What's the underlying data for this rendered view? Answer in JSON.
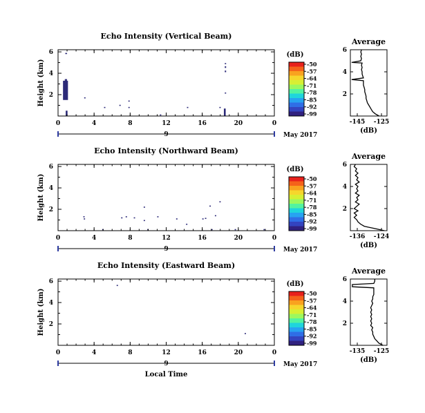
{
  "panels": [
    {
      "title": "Echo Intensity (Vertical Beam)",
      "ylabel": "Height (km)",
      "xticks": [
        "0",
        "4",
        "8",
        "12",
        "16",
        "20",
        "0"
      ],
      "yticks": [
        "2",
        "4",
        "6"
      ],
      "date_day": "9",
      "date_label": "May 2017",
      "echoes": [
        {
          "t0": 0.55,
          "t1": 1.1,
          "h0": 1.5,
          "h1": 3.3
        },
        {
          "t0": 0.75,
          "t1": 1.0,
          "h0": 3.3,
          "h1": 3.45
        },
        {
          "t0": 0.85,
          "t1": 1.05,
          "h0": 0.0,
          "h1": 0.5
        },
        {
          "t0": 0.8,
          "t1": 1.0,
          "h0": 5.8,
          "h1": 5.9
        },
        {
          "t0": 2.9,
          "t1": 3.05,
          "h0": 1.65,
          "h1": 1.75
        },
        {
          "t0": 5.1,
          "t1": 5.25,
          "h0": 0.75,
          "h1": 0.85
        },
        {
          "t0": 6.8,
          "t1": 6.95,
          "h0": 0.95,
          "h1": 1.05
        },
        {
          "t0": 7.8,
          "t1": 7.95,
          "h0": 1.35,
          "h1": 1.45
        },
        {
          "t0": 7.8,
          "t1": 7.95,
          "h0": 0.75,
          "h1": 0.85
        },
        {
          "t0": 11.3,
          "t1": 11.45,
          "h0": 0.05,
          "h1": 0.15
        },
        {
          "t0": 14.3,
          "t1": 14.45,
          "h0": 0.75,
          "h1": 0.85
        },
        {
          "t0": 17.9,
          "t1": 18.05,
          "h0": 0.75,
          "h1": 0.85
        },
        {
          "t0": 18.4,
          "t1": 18.6,
          "h0": 0.0,
          "h1": 0.7
        },
        {
          "t0": 18.5,
          "t1": 18.65,
          "h0": 2.1,
          "h1": 2.2
        },
        {
          "t0": 18.5,
          "t1": 18.65,
          "h0": 4.1,
          "h1": 4.25
        },
        {
          "t0": 18.5,
          "t1": 18.65,
          "h0": 4.5,
          "h1": 4.65
        },
        {
          "t0": 18.5,
          "t1": 18.65,
          "h0": 4.85,
          "h1": 4.95
        }
      ],
      "avg": {
        "title": "Average",
        "xlabel": "(dB)",
        "xlim": [
          -150,
          -122
        ],
        "xticks": [
          "-145",
          "-125"
        ],
        "yticks": [
          "2",
          "4",
          "6"
        ],
        "ylim": [
          0,
          6
        ],
        "profile": [
          [
            -128,
            0.0
          ],
          [
            -131,
            0.2
          ],
          [
            -133,
            0.4
          ],
          [
            -134,
            0.6
          ],
          [
            -135,
            0.8
          ],
          [
            -136,
            1.0
          ],
          [
            -137,
            1.2
          ],
          [
            -137.5,
            1.4
          ],
          [
            -138,
            1.6
          ],
          [
            -138,
            1.8
          ],
          [
            -138.5,
            2.0
          ],
          [
            -139,
            2.2
          ],
          [
            -139,
            2.4
          ],
          [
            -139.5,
            2.6
          ],
          [
            -140,
            2.8
          ],
          [
            -140,
            3.0
          ],
          [
            -140,
            3.2
          ],
          [
            -149,
            3.3
          ],
          [
            -140,
            3.45
          ],
          [
            -140.5,
            3.6
          ],
          [
            -141,
            3.8
          ],
          [
            -141,
            4.0
          ],
          [
            -141.5,
            4.2
          ],
          [
            -141,
            4.4
          ],
          [
            -141.5,
            4.6
          ],
          [
            -141,
            4.8
          ],
          [
            -149,
            4.85
          ],
          [
            -142,
            5.0
          ],
          [
            -141.5,
            5.2
          ],
          [
            -142,
            5.4
          ],
          [
            -141.5,
            5.6
          ],
          [
            -142,
            5.8
          ],
          [
            -141.5,
            6.0
          ]
        ]
      }
    },
    {
      "title": "Echo Intensity (Northward Beam)",
      "ylabel": "Height (km)",
      "xticks": [
        "0",
        "4",
        "8",
        "12",
        "16",
        "20",
        "0"
      ],
      "yticks": [
        "2",
        "4",
        "6"
      ],
      "date_day": "9",
      "date_label": "May 2017",
      "echoes": [
        {
          "t0": 2.8,
          "t1": 2.95,
          "h0": 1.25,
          "h1": 1.35
        },
        {
          "t0": 2.85,
          "t1": 3.0,
          "h0": 1.05,
          "h1": 1.15
        },
        {
          "t0": 4.9,
          "t1": 5.05,
          "h0": 0.05,
          "h1": 0.15
        },
        {
          "t0": 7.0,
          "t1": 7.15,
          "h0": 1.15,
          "h1": 1.25
        },
        {
          "t0": 7.5,
          "t1": 7.65,
          "h0": 1.25,
          "h1": 1.35
        },
        {
          "t0": 8.4,
          "t1": 8.55,
          "h0": 1.15,
          "h1": 1.25
        },
        {
          "t0": 9.5,
          "t1": 9.65,
          "h0": 2.15,
          "h1": 2.25
        },
        {
          "t0": 9.5,
          "t1": 9.65,
          "h0": 0.9,
          "h1": 1.0
        },
        {
          "t0": 9.9,
          "t1": 10.05,
          "h0": 0.05,
          "h1": 0.15
        },
        {
          "t0": 11.0,
          "t1": 11.15,
          "h0": 1.25,
          "h1": 1.35
        },
        {
          "t0": 13.1,
          "t1": 13.25,
          "h0": 1.05,
          "h1": 1.15
        },
        {
          "t0": 14.2,
          "t1": 14.35,
          "h0": 0.55,
          "h1": 0.65
        },
        {
          "t0": 16.0,
          "t1": 16.15,
          "h0": 1.05,
          "h1": 1.15
        },
        {
          "t0": 16.3,
          "t1": 16.45,
          "h0": 1.1,
          "h1": 1.2
        },
        {
          "t0": 16.8,
          "t1": 16.95,
          "h0": 2.25,
          "h1": 2.35
        },
        {
          "t0": 17.0,
          "t1": 17.15,
          "h0": 0.05,
          "h1": 0.15
        },
        {
          "t0": 17.4,
          "t1": 17.55,
          "h0": 1.35,
          "h1": 1.45
        },
        {
          "t0": 17.9,
          "t1": 18.05,
          "h0": 2.65,
          "h1": 2.75
        },
        {
          "t0": 19.6,
          "t1": 19.75,
          "h0": 0.05,
          "h1": 0.15
        },
        {
          "t0": 22.8,
          "t1": 22.95,
          "h0": 0.05,
          "h1": 0.15
        }
      ],
      "avg": {
        "title": "Average",
        "xlabel": "(dB)",
        "xlim": [
          -137.5,
          -123
        ],
        "xticks": [
          "-136",
          "-124"
        ],
        "yticks": [
          "2",
          "4",
          "6"
        ],
        "ylim": [
          0,
          6
        ],
        "profile": [
          [
            -124,
            0.0
          ],
          [
            -126,
            0.1
          ],
          [
            -128,
            0.2
          ],
          [
            -130,
            0.3
          ],
          [
            -132,
            0.4
          ],
          [
            -133.5,
            0.6
          ],
          [
            -134.5,
            0.8
          ],
          [
            -135,
            1.0
          ],
          [
            -136,
            1.2
          ],
          [
            -135,
            1.4
          ],
          [
            -136,
            1.6
          ],
          [
            -134.5,
            1.8
          ],
          [
            -136,
            2.0
          ],
          [
            -135,
            2.2
          ],
          [
            -134,
            2.4
          ],
          [
            -135.5,
            2.6
          ],
          [
            -134.5,
            2.8
          ],
          [
            -135,
            3.0
          ],
          [
            -134,
            3.2
          ],
          [
            -135.5,
            3.4
          ],
          [
            -134.5,
            3.6
          ],
          [
            -135,
            3.8
          ],
          [
            -134.5,
            4.0
          ],
          [
            -135.5,
            4.2
          ],
          [
            -134,
            4.4
          ],
          [
            -135,
            4.6
          ],
          [
            -134.5,
            4.8
          ],
          [
            -135.5,
            5.0
          ],
          [
            -134.5,
            5.2
          ],
          [
            -135.5,
            5.4
          ],
          [
            -135,
            5.6
          ],
          [
            -136,
            5.8
          ],
          [
            -135.5,
            6.0
          ]
        ]
      }
    },
    {
      "title": "Echo Intensity (Eastward Beam)",
      "ylabel": "Height (km)",
      "xticks": [
        "0",
        "4",
        "8",
        "12",
        "16",
        "20",
        "0"
      ],
      "yticks": [
        "2",
        "4",
        "6"
      ],
      "date_day": "9",
      "date_label": "May 2017",
      "xlabel": "Local Time",
      "echoes": [
        {
          "t0": 6.5,
          "t1": 6.65,
          "h0": 5.55,
          "h1": 5.65
        },
        {
          "t0": 20.7,
          "t1": 20.85,
          "h0": 1.05,
          "h1": 1.15
        }
      ],
      "avg": {
        "title": "Average",
        "xlabel": "(dB)",
        "xlim": [
          -140,
          -122
        ],
        "xticks": [
          "-135",
          "-125"
        ],
        "yticks": [
          "2",
          "4",
          "6"
        ],
        "ylim": [
          0,
          6
        ],
        "profile": [
          [
            -124,
            0.0
          ],
          [
            -126,
            0.2
          ],
          [
            -127,
            0.4
          ],
          [
            -128,
            0.6
          ],
          [
            -128.5,
            0.8
          ],
          [
            -129,
            1.0
          ],
          [
            -129,
            1.2
          ],
          [
            -129.5,
            1.4
          ],
          [
            -129,
            1.6
          ],
          [
            -130,
            1.8
          ],
          [
            -129.5,
            2.0
          ],
          [
            -130,
            2.2
          ],
          [
            -129.5,
            2.4
          ],
          [
            -130,
            2.6
          ],
          [
            -129.5,
            2.8
          ],
          [
            -130,
            3.0
          ],
          [
            -129.5,
            3.2
          ],
          [
            -130,
            3.4
          ],
          [
            -129.5,
            3.6
          ],
          [
            -129,
            3.8
          ],
          [
            -129.5,
            4.0
          ],
          [
            -129,
            4.2
          ],
          [
            -129,
            4.4
          ],
          [
            -128.5,
            4.6
          ],
          [
            -128.5,
            4.8
          ],
          [
            -128.5,
            5.0
          ],
          [
            -128.5,
            5.2
          ],
          [
            -139,
            5.3
          ],
          [
            -139,
            5.5
          ],
          [
            -128.5,
            5.6
          ],
          [
            -128,
            5.8
          ],
          [
            -128,
            6.0
          ]
        ]
      }
    }
  ],
  "colorbar": {
    "label": "(dB)",
    "ticks": [
      "-50",
      "-57",
      "-64",
      "-71",
      "-78",
      "-85",
      "-92",
      "-99"
    ],
    "colors": [
      "#e8211b",
      "#f5621a",
      "#f9a21f",
      "#f6d62c",
      "#d7ef33",
      "#9cf85e",
      "#52f3a0",
      "#1fd5dc",
      "#27a3f1",
      "#2f6ee6",
      "#3344c0",
      "#30217f"
    ]
  },
  "chart_data": [
    {
      "type": "heatmap",
      "title": "Echo Intensity (Vertical Beam)",
      "ylabel": "Height (km)",
      "xticks": [
        "0",
        "4",
        "8",
        "12",
        "16",
        "20",
        "0"
      ],
      "yticks": [
        "2",
        "4",
        "6"
      ]
    },
    {
      "type": "heatmap",
      "title": "Echo Intensity (Northward Beam)",
      "ylabel": "Height (km)",
      "xticks": [
        "0",
        "4",
        "8",
        "12",
        "16",
        "20",
        "0"
      ],
      "yticks": [
        "2",
        "4",
        "6"
      ]
    },
    {
      "type": "heatmap",
      "title": "Echo Intensity (Eastward Beam)",
      "ylabel": "Height (km)",
      "xlabel": "Local Time",
      "xticks": [
        "0",
        "4",
        "8",
        "12",
        "16",
        "20",
        "0"
      ],
      "yticks": [
        "2",
        "4",
        "6"
      ]
    },
    {
      "type": "line",
      "title": "Average",
      "xlabel": "(dB)",
      "xticks": [
        "-145",
        "-125"
      ],
      "yticks": [
        "2",
        "4",
        "6"
      ]
    },
    {
      "type": "line",
      "title": "Average",
      "xlabel": "(dB)",
      "xticks": [
        "-136",
        "-124"
      ],
      "yticks": [
        "2",
        "4",
        "6"
      ]
    },
    {
      "type": "line",
      "title": "Average",
      "xlabel": "(dB)",
      "xticks": [
        "-135",
        "-125"
      ],
      "yticks": [
        "2",
        "4",
        "6"
      ]
    }
  ]
}
